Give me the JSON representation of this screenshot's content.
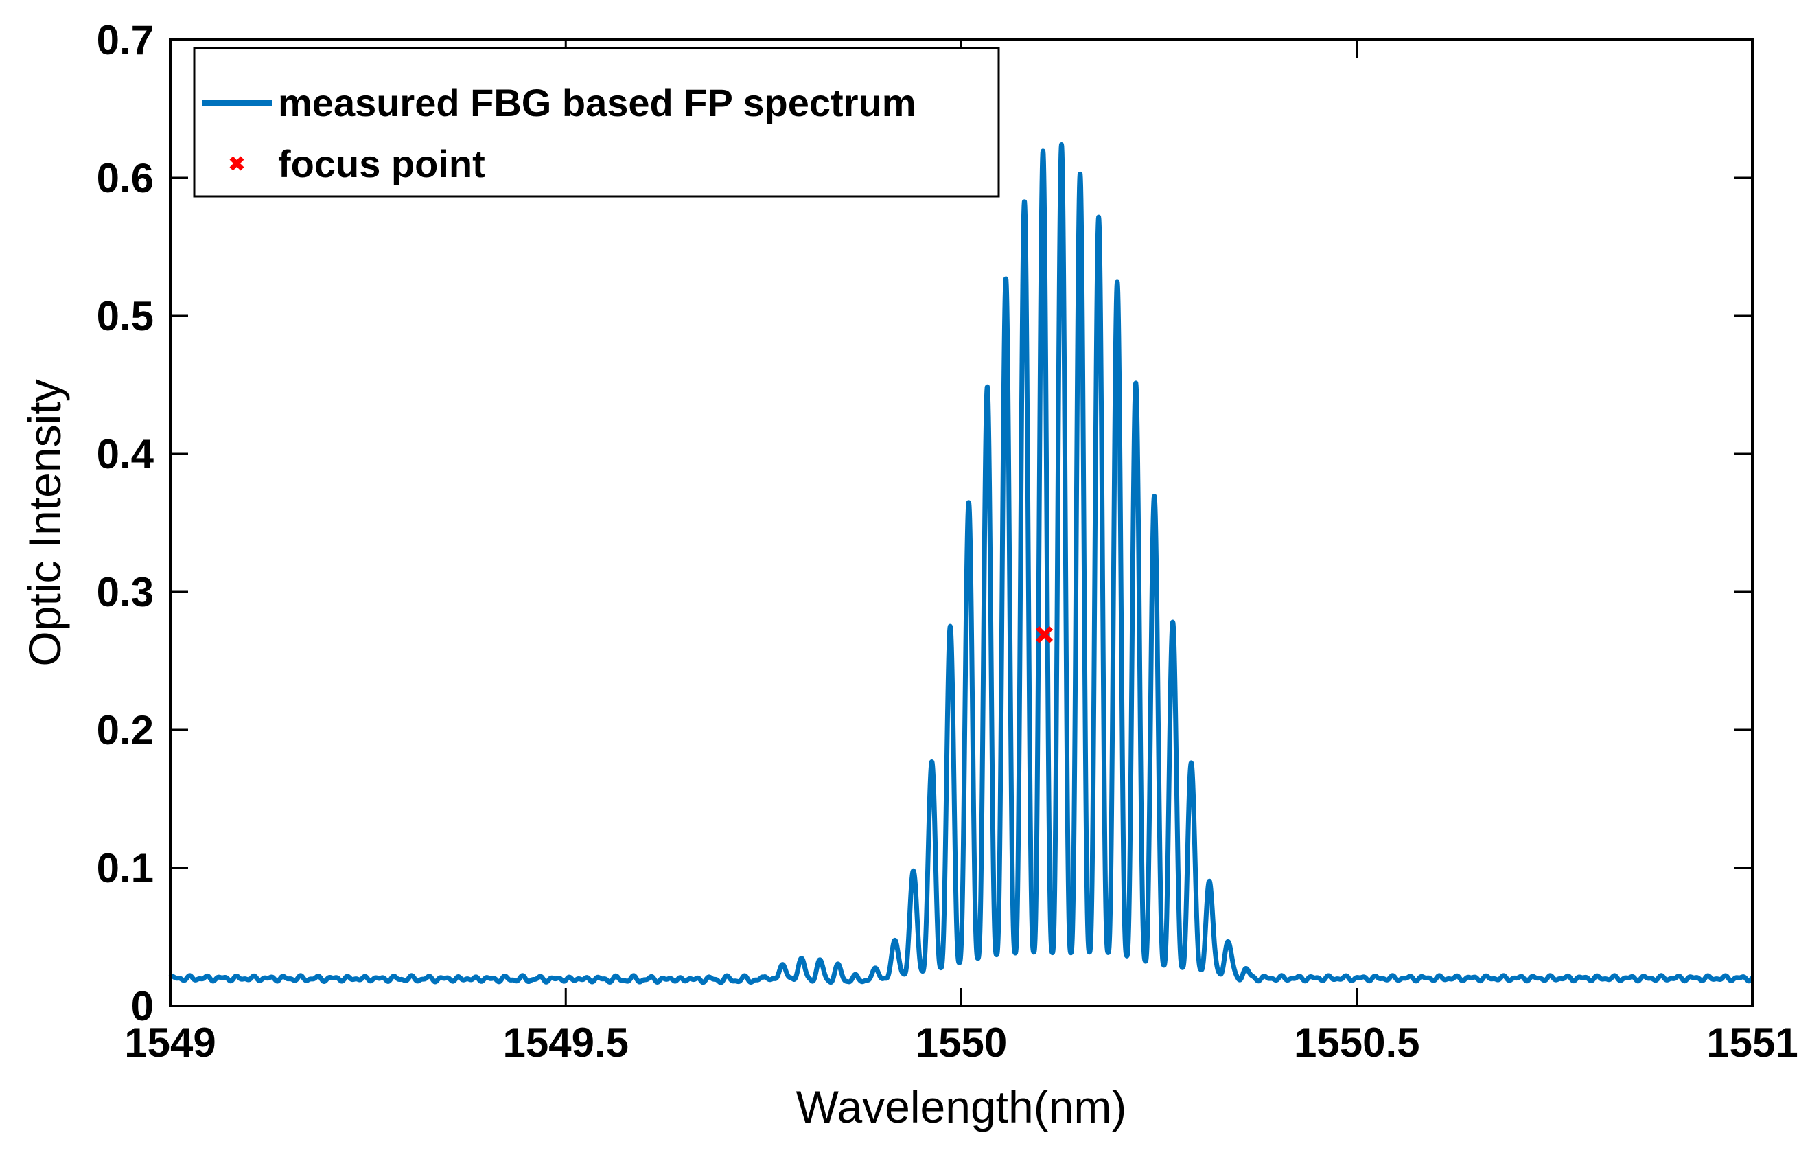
{
  "chart_data": {
    "type": "line",
    "title": "",
    "xlabel": "Wavelength(nm)",
    "ylabel": "Optic Intensity",
    "xlim": [
      1549,
      1551
    ],
    "ylim": [
      0,
      0.7
    ],
    "xticks": [
      1549,
      1549.5,
      1550,
      1550.5,
      1551
    ],
    "xtick_labels": [
      "1549",
      "1549.5",
      "1550",
      "1550.5",
      "1551"
    ],
    "yticks": [
      0,
      0.1,
      0.2,
      0.3,
      0.4,
      0.5,
      0.6,
      0.7
    ],
    "ytick_labels": [
      "0",
      "0.1",
      "0.2",
      "0.3",
      "0.4",
      "0.5",
      "0.6",
      "0.7"
    ],
    "grid": false,
    "legend_position": "top-left",
    "series": [
      {
        "name": "measured FBG based FP spectrum",
        "color": "#0072BD",
        "baseline": 0.02,
        "fringe_period_nm": 0.0235,
        "envelope_peaks": [
          [
            1549.0,
            0.0
          ],
          [
            1549.75,
            0.0
          ],
          [
            1549.76,
            0.008
          ],
          [
            1549.8,
            0.015
          ],
          [
            1549.84,
            0.01
          ],
          [
            1549.87,
            0.0
          ],
          [
            1549.905,
            0.012
          ],
          [
            1549.92,
            0.035
          ],
          [
            1549.94,
            0.08
          ],
          [
            1549.96,
            0.145
          ],
          [
            1549.98,
            0.23
          ],
          [
            1550.0,
            0.31
          ],
          [
            1550.03,
            0.42
          ],
          [
            1550.06,
            0.52
          ],
          [
            1550.09,
            0.585
          ],
          [
            1550.115,
            0.61
          ],
          [
            1550.14,
            0.595
          ],
          [
            1550.17,
            0.56
          ],
          [
            1550.2,
            0.5
          ],
          [
            1550.23,
            0.4
          ],
          [
            1550.26,
            0.29
          ],
          [
            1550.29,
            0.16
          ],
          [
            1550.32,
            0.05
          ],
          [
            1550.345,
            0.018
          ],
          [
            1550.37,
            0.0
          ],
          [
            1551.0,
            0.0
          ]
        ],
        "valley_levels": [
          [
            1549.0,
            0.02
          ],
          [
            1549.9,
            0.018
          ],
          [
            1549.95,
            0.025
          ],
          [
            1550.0,
            0.032
          ],
          [
            1550.1,
            0.04
          ],
          [
            1550.2,
            0.037
          ],
          [
            1550.28,
            0.028
          ],
          [
            1550.35,
            0.02
          ],
          [
            1551.0,
            0.02
          ]
        ]
      },
      {
        "name": "focus point",
        "color": "#FF0000",
        "marker": "x",
        "x": [
          1550.105
        ],
        "y": [
          0.269
        ]
      }
    ]
  }
}
